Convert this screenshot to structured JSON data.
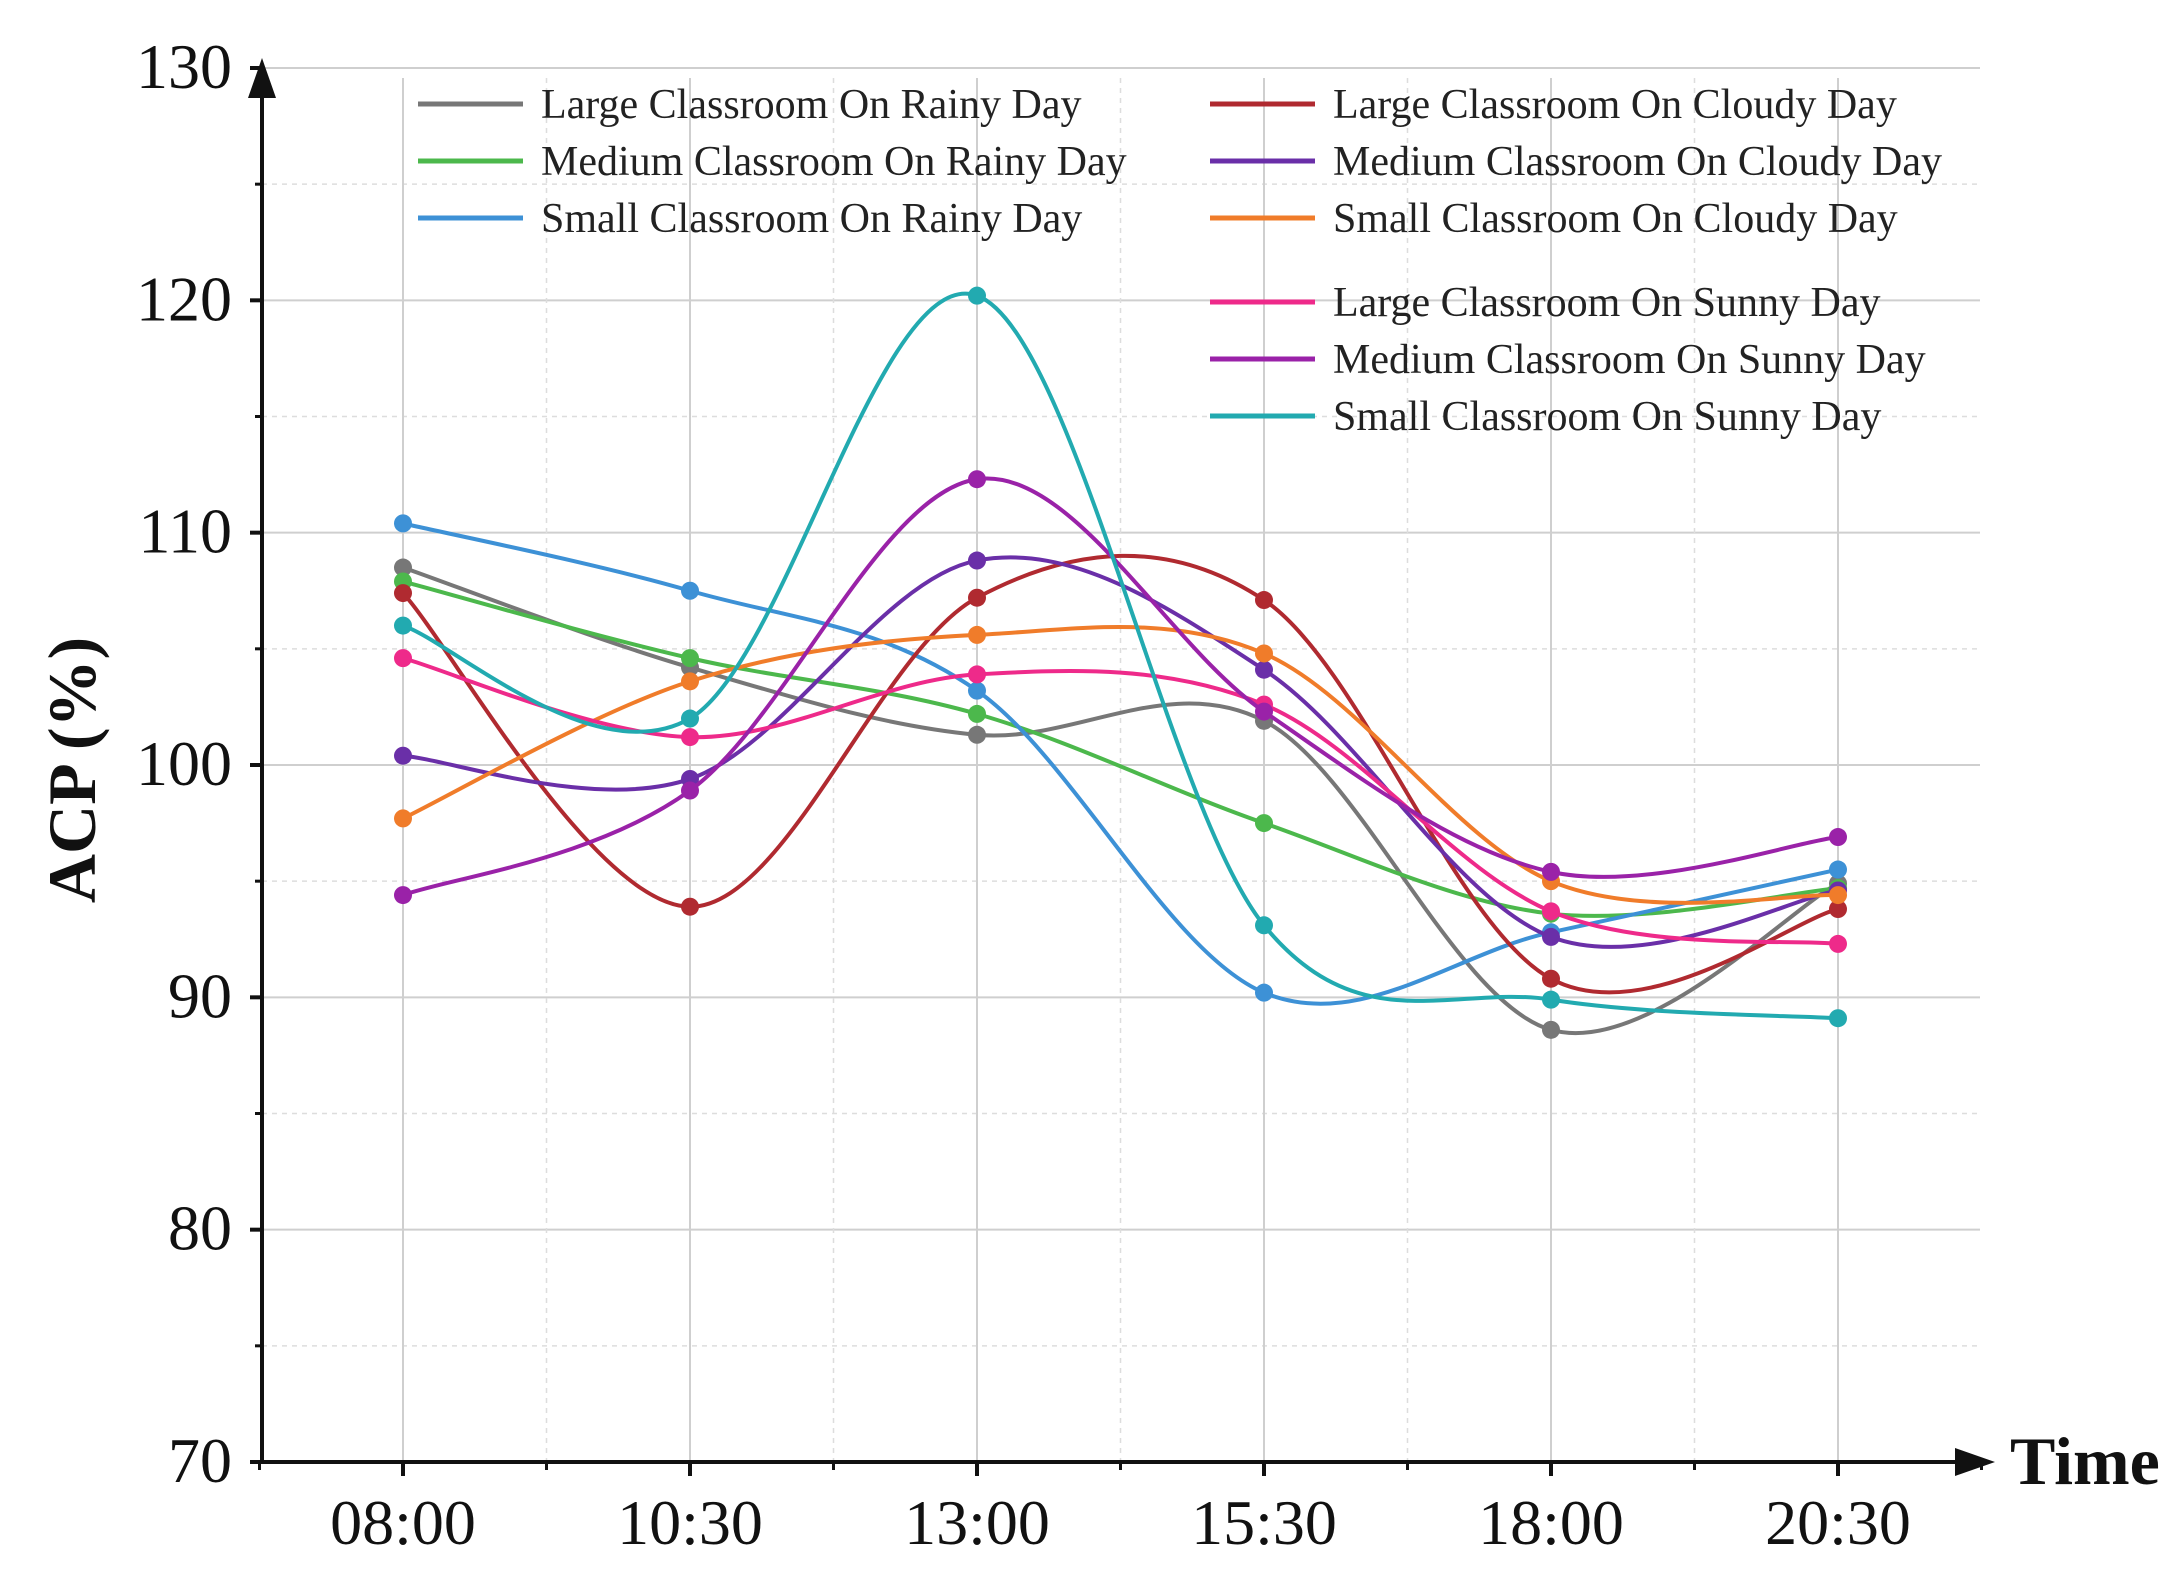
{
  "chart_data": {
    "type": "line",
    "title": "",
    "xlabel": "Time",
    "ylabel": "ACP (%)",
    "categories": [
      "08:00",
      "10:30",
      "13:00",
      "15:30",
      "18:00",
      "20:30"
    ],
    "ylim": [
      70,
      130
    ],
    "yticks": [
      70,
      80,
      90,
      100,
      110,
      120,
      130
    ],
    "grid": true,
    "legend_position": "top",
    "series": [
      {
        "name": "Large Classroom On Rainy Day",
        "color": "#777777",
        "values": [
          108.5,
          104.2,
          101.3,
          101.9,
          88.6,
          94.9
        ]
      },
      {
        "name": "Medium Classroom On Rainy Day",
        "color": "#4cb84c",
        "values": [
          107.9,
          104.6,
          102.2,
          97.5,
          93.6,
          94.7
        ]
      },
      {
        "name": "Small Classroom On Rainy Day",
        "color": "#3d91d6",
        "values": [
          110.4,
          107.5,
          103.2,
          90.2,
          92.8,
          95.5
        ]
      },
      {
        "name": "Large Classroom On Cloudy Day",
        "color": "#b02a30",
        "values": [
          107.4,
          93.9,
          107.2,
          107.1,
          90.8,
          93.8
        ]
      },
      {
        "name": "Medium Classroom On Cloudy Day",
        "color": "#6a2fa8",
        "values": [
          100.4,
          99.4,
          108.8,
          104.1,
          92.6,
          94.6
        ]
      },
      {
        "name": "Small Classroom On Cloudy Day",
        "color": "#f07c2a",
        "values": [
          97.7,
          103.6,
          105.6,
          104.8,
          95.0,
          94.4
        ]
      },
      {
        "name": "Large Classroom On Sunny Day",
        "color": "#ee2a8a",
        "values": [
          104.6,
          101.2,
          103.9,
          102.6,
          93.7,
          92.3
        ]
      },
      {
        "name": "Medium Classroom On Sunny Day",
        "color": "#9a22a8",
        "values": [
          94.4,
          98.9,
          112.3,
          102.3,
          95.4,
          96.9
        ]
      },
      {
        "name": "Small Classroom On Sunny Day",
        "color": "#22aab0",
        "values": [
          106.0,
          102.0,
          120.2,
          93.1,
          89.9,
          89.1
        ]
      }
    ]
  }
}
